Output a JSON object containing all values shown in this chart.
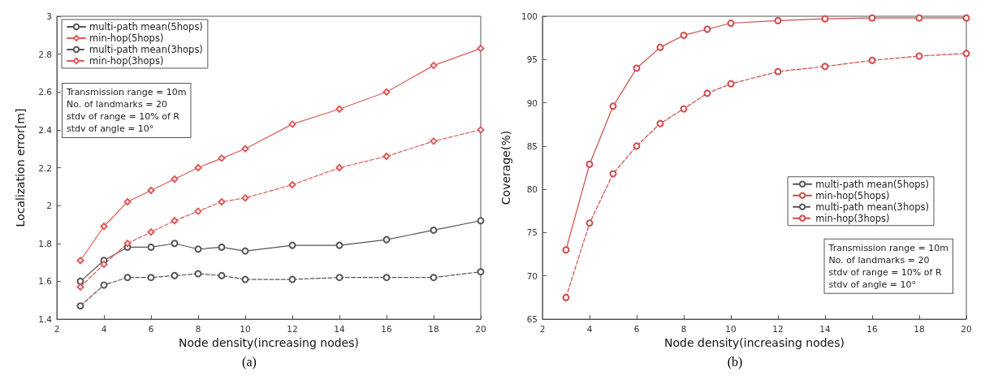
{
  "chart_data": [
    {
      "type": "line",
      "xlabel": "Node density(increasing nodes)",
      "ylabel": "Localization error[m]",
      "x": [
        3,
        4,
        5,
        6,
        7,
        8,
        9,
        10,
        12,
        14,
        16,
        18,
        20
      ],
      "series": [
        {
          "name": "multi-path mean(5hops)",
          "color": "#555555",
          "marker": "circle",
          "line_style": "solid",
          "values": [
            1.6,
            1.71,
            1.78,
            1.78,
            1.8,
            1.77,
            1.78,
            1.76,
            1.79,
            1.79,
            1.82,
            1.87,
            1.92
          ]
        },
        {
          "name": "min-hop(5hops)",
          "color": "#e05a5a",
          "marker": "diamond",
          "line_style": "solid",
          "values": [
            1.71,
            1.89,
            2.02,
            2.08,
            2.14,
            2.2,
            2.25,
            2.3,
            2.43,
            2.51,
            2.6,
            2.74,
            2.83
          ]
        },
        {
          "name": "multi-path mean(3hops)",
          "color": "#555555",
          "marker": "circle",
          "line_style": "dashed",
          "values": [
            1.47,
            1.58,
            1.62,
            1.62,
            1.63,
            1.64,
            1.63,
            1.61,
            1.61,
            1.62,
            1.62,
            1.62,
            1.65
          ]
        },
        {
          "name": "min-hop(3hops)",
          "color": "#e05a5a",
          "marker": "diamond",
          "line_style": "dashed",
          "values": [
            1.57,
            1.69,
            1.8,
            1.86,
            1.92,
            1.97,
            2.02,
            2.04,
            2.11,
            2.2,
            2.26,
            2.34,
            2.4
          ]
        }
      ],
      "xlim": [
        2,
        20
      ],
      "xticks": [
        2,
        4,
        6,
        8,
        10,
        12,
        14,
        16,
        18,
        20
      ],
      "ylim": [
        1.4,
        3
      ],
      "yticks": [
        1.4,
        1.6,
        1.8,
        2,
        2.2,
        2.4,
        2.6,
        2.8,
        3
      ],
      "grid": false,
      "legend": "top left",
      "annotations": [
        "Transmission range = 10m\nNo. of landmarks = 20\nstdv of range = 10% of R\nstdv of angle = 10°",
        "(a)"
      ]
    },
    {
      "type": "line",
      "xlabel": "Node density(increasing nodes)",
      "ylabel": "Coverage(%)",
      "x": [
        3,
        4,
        5,
        6,
        7,
        8,
        9,
        10,
        12,
        14,
        16,
        18,
        20
      ],
      "series": [
        {
          "name": "multi-path mean(5hops)",
          "color": "#555555",
          "marker": "circle",
          "line_style": "solid",
          "values": [
            null,
            null,
            null,
            null,
            null,
            null,
            null,
            null,
            null,
            null,
            null,
            null,
            null
          ]
        },
        {
          "name": "min-hop(5hops)",
          "color": "#d04a4a",
          "marker": "circle",
          "line_style": "solid",
          "values": [
            73,
            82.9,
            89.6,
            94,
            96.4,
            97.8,
            98.5,
            99.2,
            99.5,
            99.7,
            99.8,
            99.8,
            99.8
          ]
        },
        {
          "name": "multi-path mean(3hops)",
          "color": "#555555",
          "marker": "circle",
          "line_style": "dashed",
          "values": [
            null,
            null,
            null,
            null,
            null,
            null,
            null,
            null,
            null,
            null,
            null,
            null,
            null
          ]
        },
        {
          "name": "min-hop(3hops)",
          "color": "#d04a4a",
          "marker": "circle",
          "line_style": "dashed",
          "values": [
            67.5,
            76.1,
            81.8,
            85,
            87.6,
            89.3,
            91.1,
            92.2,
            93.6,
            94.2,
            94.9,
            95.4,
            95.7
          ]
        }
      ],
      "xlim": [
        2,
        20
      ],
      "xticks": [
        2,
        4,
        6,
        8,
        10,
        12,
        14,
        16,
        18,
        20
      ],
      "ylim": [
        65,
        100
      ],
      "yticks": [
        65,
        70,
        75,
        80,
        85,
        90,
        95,
        100
      ],
      "grid": false,
      "legend": "right",
      "annotations": [
        "Transmission range = 10m\nNo. of landmarks = 20\nstdv of range = 10% of R\nstdv of angle = 10°",
        "(b)"
      ]
    }
  ]
}
